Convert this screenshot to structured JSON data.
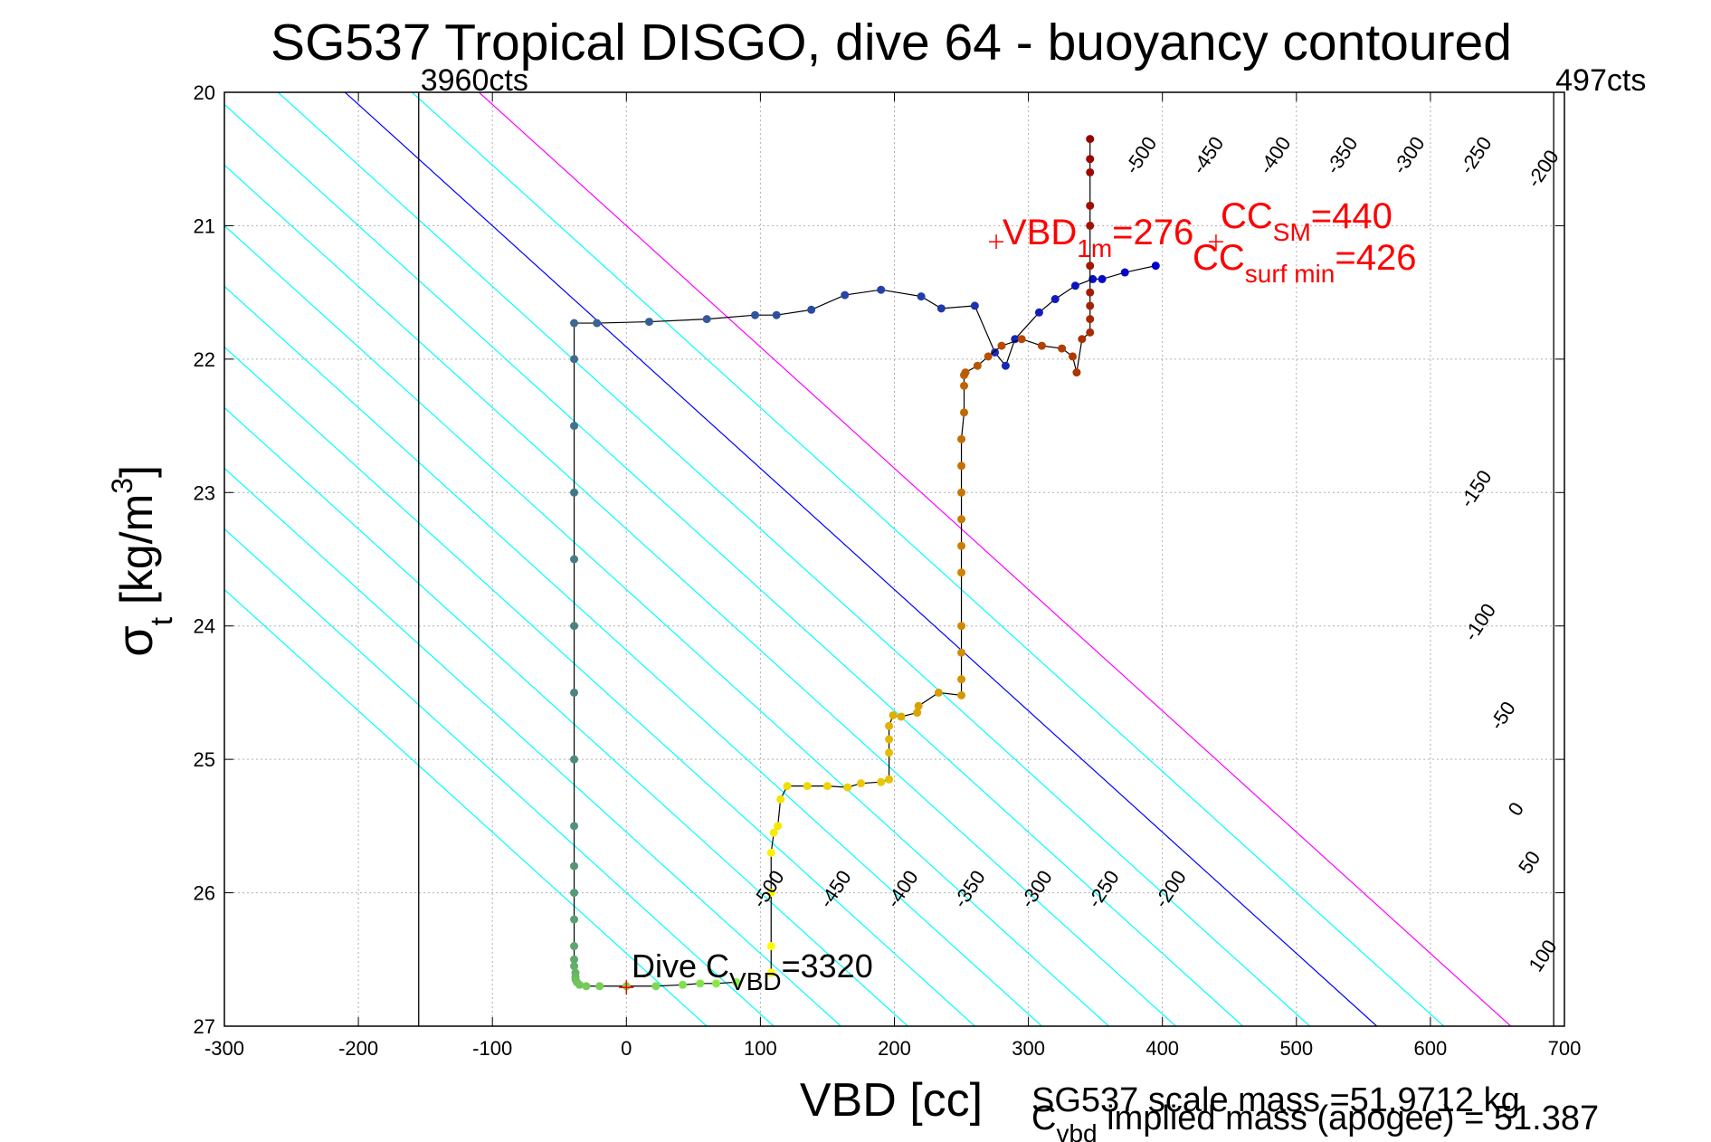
{
  "chart_data": {
    "type": "scatter",
    "title": "SG537 Tropical DISGO, dive 64 - buoyancy contoured",
    "xlabel": "VBD [cc]",
    "ylabel": "σt [kg/m3]",
    "xlim": [
      -300,
      700
    ],
    "ylim": [
      20,
      27
    ],
    "y_reversed": true,
    "grid": true,
    "x_ticks": [
      -300,
      -200,
      -100,
      0,
      100,
      200,
      300,
      400,
      500,
      600,
      700
    ],
    "y_ticks": [
      20,
      21,
      22,
      23,
      24,
      25,
      26,
      27
    ],
    "x_tick_labels": [
      "-300",
      "-200",
      "-100",
      "0",
      "100",
      "200",
      "300",
      "400",
      "500",
      "600",
      "700"
    ],
    "y_tick_labels": [
      "20",
      "21",
      "22",
      "23",
      "24",
      "25",
      "26",
      "27"
    ],
    "limit_lines": [
      {
        "x": -155,
        "label": "3960cts"
      },
      {
        "x": 692,
        "label": "497cts"
      }
    ],
    "contour_slope_cc_per_sigma": 110,
    "contours": [
      {
        "level": -500,
        "x_at_27": 60,
        "color": "#00ffff"
      },
      {
        "level": -450,
        "x_at_27": 110,
        "color": "#00ffff"
      },
      {
        "level": -400,
        "x_at_27": 160,
        "color": "#00ffff"
      },
      {
        "level": -350,
        "x_at_27": 210,
        "color": "#00ffff"
      },
      {
        "level": -300,
        "x_at_27": 260,
        "color": "#00ffff"
      },
      {
        "level": -250,
        "x_at_27": 310,
        "color": "#00ffff"
      },
      {
        "level": -200,
        "x_at_27": 360,
        "color": "#00ffff"
      },
      {
        "level": -150,
        "x_at_27": 410,
        "color": "#00ffff"
      },
      {
        "level": -100,
        "x_at_27": 460,
        "color": "#00ffff"
      },
      {
        "level": -50,
        "x_at_27": 510,
        "color": "#00ffff"
      },
      {
        "level": 0,
        "x_at_27": 560,
        "color": "#0000ff"
      },
      {
        "level": 50,
        "x_at_27": 610,
        "color": "#00ffff"
      },
      {
        "level": 100,
        "x_at_27": 660,
        "color": "#ff00ff"
      }
    ],
    "contour_labels": [
      {
        "text": "-500",
        "x": 388,
        "y": 20.5
      },
      {
        "text": "-450",
        "x": 438,
        "y": 20.5
      },
      {
        "text": "-400",
        "x": 488,
        "y": 20.5
      },
      {
        "text": "-350",
        "x": 538,
        "y": 20.5
      },
      {
        "text": "-300",
        "x": 588,
        "y": 20.5
      },
      {
        "text": "-250",
        "x": 638,
        "y": 20.5
      },
      {
        "text": "-200",
        "x": 688,
        "y": 20.6
      },
      {
        "text": "-150",
        "x": 638,
        "y": 23.0
      },
      {
        "text": "-100",
        "x": 641,
        "y": 24.0
      },
      {
        "text": "-50",
        "x": 658,
        "y": 24.7
      },
      {
        "text": "0",
        "x": 668,
        "y": 25.4
      },
      {
        "text": "50",
        "x": 678,
        "y": 25.8
      },
      {
        "text": "100",
        "x": 688,
        "y": 26.5
      },
      {
        "text": "-500",
        "x": 110,
        "y": 26.0
      },
      {
        "text": "-450",
        "x": 160,
        "y": 26.0
      },
      {
        "text": "-400",
        "x": 210,
        "y": 26.0
      },
      {
        "text": "-350",
        "x": 260,
        "y": 26.0
      },
      {
        "text": "-300",
        "x": 310,
        "y": 26.0
      },
      {
        "text": "-250",
        "x": 360,
        "y": 26.0
      },
      {
        "text": "-200",
        "x": 410,
        "y": 26.0
      }
    ],
    "series": [
      {
        "segment": "dive",
        "color_start": "#0000cc",
        "color_end": "#88ee44",
        "x": [
          395,
          372,
          355,
          348,
          335,
          320,
          308,
          290,
          283,
          275,
          260,
          235,
          220,
          190,
          163,
          138,
          112,
          96,
          60,
          17,
          -22,
          -39,
          -39,
          -39,
          -39,
          -39,
          -39,
          -39,
          -39,
          -39,
          -39,
          -39,
          -39,
          -39,
          -39,
          -39,
          -38,
          -38,
          -38,
          -37,
          -35,
          -30,
          -20,
          0,
          22,
          42,
          55,
          67,
          82
        ],
        "y": [
          21.3,
          21.35,
          21.4,
          21.4,
          21.45,
          21.55,
          21.65,
          21.85,
          22.05,
          21.95,
          21.6,
          21.62,
          21.53,
          21.48,
          21.52,
          21.63,
          21.67,
          21.67,
          21.7,
          21.72,
          21.73,
          21.73,
          22.0,
          22.5,
          23.0,
          23.5,
          24.0,
          24.5,
          25.0,
          25.5,
          25.8,
          26.0,
          26.2,
          26.4,
          26.5,
          26.55,
          26.6,
          26.63,
          26.65,
          26.67,
          26.69,
          26.7,
          26.7,
          26.7,
          26.7,
          26.69,
          26.68,
          26.68,
          26.67
        ]
      },
      {
        "segment": "climb",
        "color_start": "#ffff00",
        "color_end": "#990000",
        "x": [
          108,
          108,
          108,
          108,
          110,
          113,
          115,
          120,
          135,
          150,
          165,
          175,
          190,
          196,
          196,
          196,
          196,
          199,
          205,
          217,
          218,
          233,
          250,
          250,
          250,
          250,
          250,
          250,
          250,
          250,
          250,
          250,
          252,
          252,
          252,
          253,
          262,
          270,
          280,
          295,
          310,
          325,
          333,
          336,
          340,
          346,
          346,
          346,
          346,
          346,
          346,
          346,
          346,
          346,
          346
        ],
        "y": [
          26.6,
          26.4,
          26.0,
          25.7,
          25.55,
          25.5,
          25.3,
          25.2,
          25.2,
          25.2,
          25.21,
          25.18,
          25.17,
          25.15,
          24.95,
          24.85,
          24.75,
          24.67,
          24.68,
          24.65,
          24.6,
          24.5,
          24.52,
          24.4,
          24.2,
          24.0,
          23.6,
          23.4,
          23.2,
          23.0,
          22.8,
          22.6,
          22.4,
          22.2,
          22.12,
          22.1,
          22.05,
          21.98,
          21.9,
          21.85,
          21.9,
          21.92,
          21.98,
          22.1,
          21.85,
          21.8,
          21.7,
          21.6,
          21.5,
          21.3,
          21.0,
          20.85,
          20.6,
          20.5,
          20.35
        ]
      }
    ],
    "markers": [
      {
        "label": "VBD 1m",
        "x": 276,
        "y": 21.12,
        "color": "#ff0000"
      },
      {
        "label": "CC",
        "x": 440,
        "y": 21.12,
        "color": "#ff0000"
      },
      {
        "label": "Dive CVBD",
        "x": 0,
        "y": 26.71,
        "color": "#ff0000"
      }
    ],
    "annotations": {
      "vbd_main": "VBD",
      "vbd_sub": "1m",
      "vbd_val": "=276",
      "ccsm_main": "CC",
      "ccsm_sub": "SM",
      "ccsm_val": "=440",
      "ccsurf_main": "CC",
      "ccsurf_sub": "surf min",
      "ccsurf_val": "=426",
      "dive_main": "Dive C",
      "dive_sub": "VBD",
      "dive_val": "=3320",
      "scale_mass": "SG537 scale mass =51.9712 kg",
      "implied_main": "C",
      "implied_sub": "vbd",
      "implied_rest": " implied mass (apogee) = 51.387"
    },
    "colors": {
      "axis": "#000000",
      "grid": "#b0b0b0",
      "contour": "#00ffff",
      "annotation": "#ff0000",
      "track_line": "#000000"
    }
  }
}
